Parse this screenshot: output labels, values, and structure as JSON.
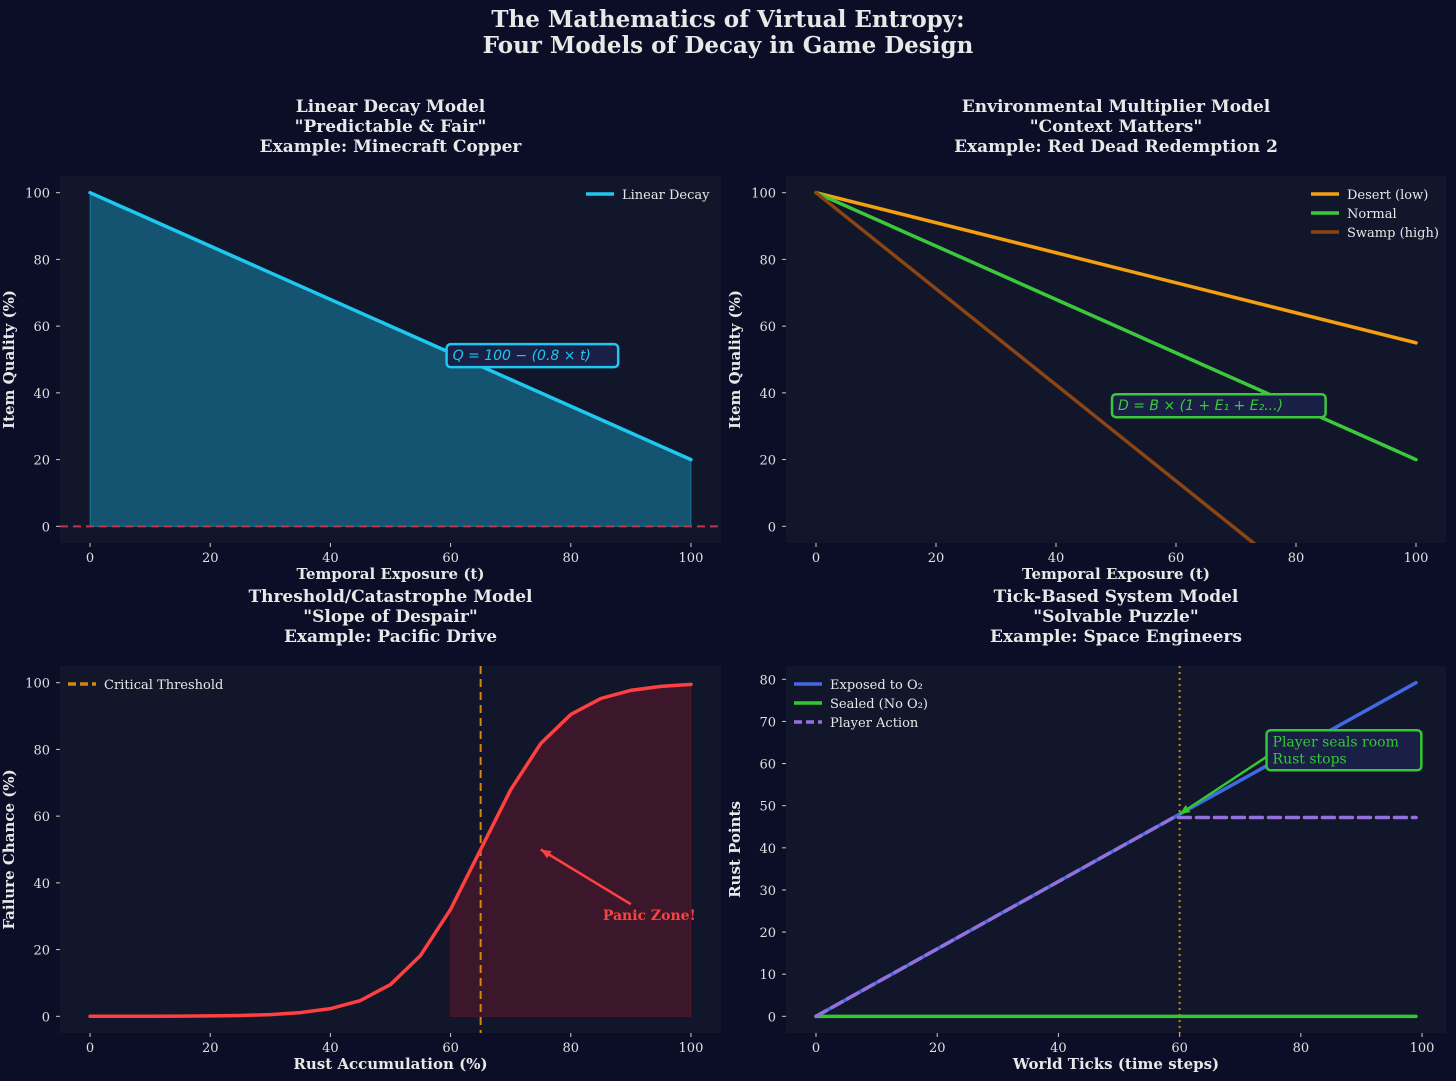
{
  "suptitle": [
    "The Mathematics of Virtual Entropy:",
    "Four Models of Decay in Game Design"
  ],
  "colors": {
    "figure_bg": "#0b0e26",
    "axes_bg": "#12162b",
    "text": "#e8e8e8"
  },
  "chart_data": [
    {
      "type": "line",
      "title": [
        "Linear Decay Model",
        "\"Predictable & Fair\"",
        "Example: Minecraft Copper"
      ],
      "xlabel": "Temporal Exposure (t)",
      "ylabel": "Item Quality (%)",
      "xlim": [
        -5,
        105
      ],
      "ylim": [
        -5,
        105
      ],
      "xticks": [
        0,
        20,
        40,
        60,
        80,
        100
      ],
      "yticks": [
        0,
        20,
        40,
        60,
        80,
        100
      ],
      "legend": "top-right",
      "series": [
        {
          "name": "Linear Decay",
          "color": "#1ec8f0",
          "style": "solid",
          "x": [
            0,
            100
          ],
          "y": [
            100,
            20
          ],
          "fill": {
            "from": 0,
            "to": 100,
            "color": "#1ec8f0"
          }
        }
      ],
      "hlines": [
        {
          "y": 0,
          "color": "#c0354a",
          "style": "dashed"
        }
      ],
      "vlines": [],
      "annotations": [
        {
          "text": "Q = 100 − (0.8 × t)",
          "x": 60,
          "y": 51,
          "color": "#1ec8f0",
          "box": true
        }
      ]
    },
    {
      "type": "line",
      "title": [
        "Environmental Multiplier Model",
        "\"Context Matters\"",
        "Example: Red Dead Redemption 2"
      ],
      "xlabel": "Temporal Exposure (t)",
      "ylabel": "Item Quality (%)",
      "xlim": [
        -5,
        105
      ],
      "ylim": [
        -5,
        105
      ],
      "xticks": [
        0,
        20,
        40,
        60,
        80,
        100
      ],
      "yticks": [
        0,
        20,
        40,
        60,
        80,
        100
      ],
      "legend": "top-right",
      "series": [
        {
          "name": "Desert (low)",
          "color": "#f5a00f",
          "style": "solid",
          "x": [
            0,
            100
          ],
          "y": [
            100,
            55
          ]
        },
        {
          "name": "Normal",
          "color": "#3cc83c",
          "style": "solid",
          "x": [
            0,
            100
          ],
          "y": [
            100,
            20
          ]
        },
        {
          "name": "Swamp (high)",
          "color": "#8b4513",
          "style": "solid",
          "x": [
            0,
            100
          ],
          "y": [
            100,
            -44
          ]
        }
      ],
      "hlines": [],
      "vlines": [],
      "annotations": [
        {
          "text": "D = B × (1 + E₁ + E₂...)",
          "x": 50,
          "y": 36,
          "color": "#3cc83c",
          "box": true
        }
      ]
    },
    {
      "type": "line",
      "title": [
        "Threshold/Catastrophe Model",
        "\"Slope of Despair\"",
        "Example: Pacific Drive"
      ],
      "xlabel": "Rust Accumulation (%)",
      "ylabel": "Failure Chance (%)",
      "xlim": [
        -5,
        105
      ],
      "ylim": [
        -5,
        105
      ],
      "xticks": [
        0,
        20,
        40,
        60,
        80,
        100
      ],
      "yticks": [
        0,
        20,
        40,
        60,
        80,
        100
      ],
      "legend": "top-left",
      "series": [
        {
          "name": "",
          "color": "#ff4040",
          "style": "solid",
          "x": [
            0,
            5,
            10,
            15,
            20,
            25,
            30,
            35,
            40,
            45,
            50,
            55,
            60,
            65,
            70,
            75,
            80,
            85,
            90,
            95,
            100
          ],
          "y": [
            0.01,
            0.01,
            0.03,
            0.06,
            0.12,
            0.25,
            0.52,
            1.1,
            2.3,
            4.74,
            9.53,
            18.24,
            32.08,
            50,
            67.92,
            81.76,
            90.47,
            95.26,
            97.7,
            98.9,
            99.48
          ],
          "fill": {
            "from": 60,
            "to": 100,
            "color": "#8b1a2e"
          }
        }
      ],
      "hlines": [],
      "vlines": [
        {
          "x": 65,
          "color": "#d4860c",
          "style": "dashed",
          "name": "Critical Threshold"
        }
      ],
      "annotations": [
        {
          "text": "Panic Zone!",
          "x": 85,
          "y": 30,
          "color": "#ff4040",
          "bold": true,
          "arrow_to": [
            75,
            50
          ]
        }
      ]
    },
    {
      "type": "line",
      "title": [
        "Tick-Based System Model",
        "\"Solvable Puzzle\"",
        "Example: Space Engineers"
      ],
      "xlabel": "World Ticks (time steps)",
      "ylabel": "Rust Points",
      "xlim": [
        -4.95,
        103.95
      ],
      "ylim": [
        -3.96,
        83.16
      ],
      "xticks": [
        0,
        20,
        40,
        60,
        80,
        100
      ],
      "yticks": [
        0,
        10,
        20,
        30,
        40,
        50,
        60,
        70,
        80
      ],
      "legend": "top-left",
      "series": [
        {
          "name": "Exposed to O₂",
          "color": "#4169e1",
          "style": "solid",
          "x": [
            0,
            99
          ],
          "y": [
            0,
            79.2
          ]
        },
        {
          "name": "Sealed (No O₂)",
          "color": "#32c832",
          "style": "solid",
          "x": [
            0,
            99
          ],
          "y": [
            0,
            0
          ]
        },
        {
          "name": "Player Action",
          "color": "#9370db",
          "style": "dashed",
          "x": [
            0,
            59,
            99
          ],
          "y": [
            0,
            47.2,
            47.2
          ]
        }
      ],
      "hlines": [],
      "vlines": [
        {
          "x": 60,
          "color": "#d4860c",
          "style": "dotted"
        }
      ],
      "annotations": [
        {
          "text": [
            "Player seals room",
            "Rust stops"
          ],
          "x": 75,
          "y": 66,
          "color": "#32c832",
          "box": true,
          "arrow_to": [
            60,
            48
          ]
        }
      ]
    }
  ]
}
